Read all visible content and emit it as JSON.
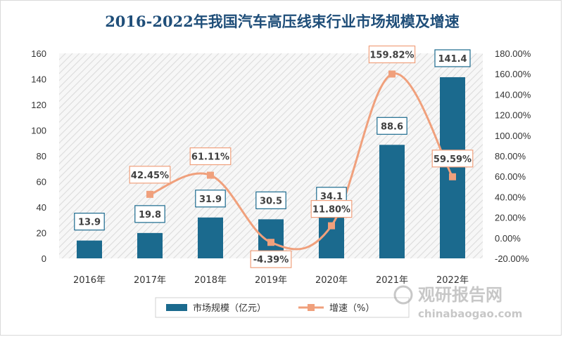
{
  "title": "2016-2022年我国汽车高压线束行业市场规模及增速",
  "colors": {
    "bar": "#1b6a8e",
    "line": "#f0a07c",
    "label_bg": "#ffffff",
    "title": "#1f4e79"
  },
  "chart_data": {
    "type": "bar+line",
    "categories": [
      "2016年",
      "2017年",
      "2018年",
      "2019年",
      "2020年",
      "2021年",
      "2022年"
    ],
    "series": [
      {
        "name": "市场规模（亿元）",
        "type": "bar",
        "axis": "left",
        "values": [
          13.9,
          19.8,
          31.9,
          30.5,
          34.1,
          88.6,
          141.4
        ],
        "labels": [
          "13.9",
          "19.8",
          "31.9",
          "30.5",
          "34.1",
          "88.6",
          "141.4"
        ]
      },
      {
        "name": "增速（%）",
        "type": "line",
        "smooth": true,
        "axis": "right",
        "values": [
          null,
          42.45,
          61.11,
          -4.39,
          11.8,
          159.82,
          59.59
        ],
        "labels": [
          "",
          "42.45%",
          "61.11%",
          "-4.39%",
          "11.80%",
          "159.82%",
          "59.59%"
        ]
      }
    ],
    "y_left": {
      "range": [
        0,
        160
      ],
      "ticks": [
        "0",
        "20",
        "40",
        "60",
        "80",
        "100",
        "120",
        "140",
        "160"
      ]
    },
    "y_right": {
      "range": [
        -20,
        180
      ],
      "ticks": [
        "-20.00%",
        "0.00%",
        "20.00%",
        "40.00%",
        "60.00%",
        "80.00%",
        "100.00%",
        "120.00%",
        "140.00%",
        "160.00%",
        "180.00%"
      ]
    },
    "legend": {
      "position": "bottom",
      "items": [
        "市场规模（亿元）",
        "增速（%）"
      ]
    },
    "background_pattern": "diagonal-hatch",
    "grid": false
  },
  "watermark": {
    "cn": "观研报告网",
    "en": "chinabaogao.com"
  }
}
